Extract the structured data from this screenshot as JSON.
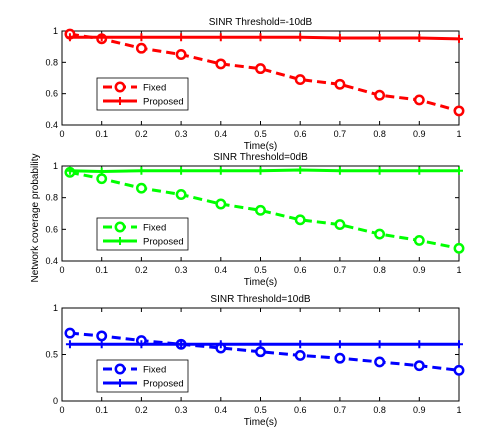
{
  "figure": {
    "shared_ylabel": "Network coverage probability"
  },
  "chart_data": [
    {
      "type": "line",
      "title": "SINR Threshold=-10dB",
      "xlabel": "Time(s)",
      "ylabel": "",
      "xlim": [
        0,
        1
      ],
      "ylim": [
        0.4,
        1
      ],
      "xticks": [
        "0",
        "0.1",
        "0.2",
        "0.3",
        "0.4",
        "0.5",
        "0.6",
        "0.7",
        "0.8",
        "0.9",
        "1"
      ],
      "yticks": [
        "0.4",
        "0.6",
        "0.8",
        "1"
      ],
      "grid": false,
      "legend_position": "bottom-left",
      "color": "#ff0000",
      "x": [
        0.02,
        0.1,
        0.2,
        0.3,
        0.4,
        0.5,
        0.6,
        0.7,
        0.8,
        0.9,
        1.0
      ],
      "series": [
        {
          "name": "Fixed",
          "style": "dashed-circle",
          "values": [
            0.98,
            0.95,
            0.89,
            0.85,
            0.79,
            0.76,
            0.69,
            0.66,
            0.59,
            0.56,
            0.49
          ]
        },
        {
          "name": "Proposed",
          "style": "solid-plus",
          "values": [
            0.96,
            0.96,
            0.96,
            0.96,
            0.96,
            0.96,
            0.96,
            0.955,
            0.955,
            0.955,
            0.95
          ]
        }
      ]
    },
    {
      "type": "line",
      "title": "SINR Threshold=0dB",
      "xlabel": "Time(s)",
      "ylabel": "",
      "xlim": [
        0,
        1
      ],
      "ylim": [
        0.4,
        1
      ],
      "xticks": [
        "0",
        "0.1",
        "0.2",
        "0.3",
        "0.4",
        "0.5",
        "0.6",
        "0.7",
        "0.8",
        "0.9",
        "1"
      ],
      "yticks": [
        "0.4",
        "0.6",
        "0.8",
        "1"
      ],
      "grid": false,
      "legend_position": "bottom-left",
      "color": "#00ff00",
      "x": [
        0.02,
        0.1,
        0.2,
        0.3,
        0.4,
        0.5,
        0.6,
        0.7,
        0.8,
        0.9,
        1.0
      ],
      "series": [
        {
          "name": "Fixed",
          "style": "dashed-circle",
          "values": [
            0.96,
            0.92,
            0.86,
            0.82,
            0.76,
            0.72,
            0.66,
            0.63,
            0.57,
            0.53,
            0.48
          ]
        },
        {
          "name": "Proposed",
          "style": "solid-plus",
          "values": [
            0.97,
            0.965,
            0.97,
            0.97,
            0.97,
            0.97,
            0.975,
            0.97,
            0.97,
            0.97,
            0.97
          ]
        }
      ]
    },
    {
      "type": "line",
      "title": "SINR Threshold=10dB",
      "xlabel": "Time(s)",
      "ylabel": "",
      "xlim": [
        0,
        1
      ],
      "ylim": [
        0,
        1
      ],
      "xticks": [
        "0",
        "0.1",
        "0.2",
        "0.3",
        "0.4",
        "0.5",
        "0.6",
        "0.7",
        "0.8",
        "0.9",
        "1"
      ],
      "yticks": [
        "0",
        "0.5",
        "1"
      ],
      "grid": false,
      "legend_position": "bottom-left",
      "color": "#0000ff",
      "x": [
        0.02,
        0.1,
        0.2,
        0.3,
        0.4,
        0.5,
        0.6,
        0.7,
        0.8,
        0.9,
        1.0
      ],
      "series": [
        {
          "name": "Fixed",
          "style": "dashed-circle",
          "values": [
            0.73,
            0.7,
            0.65,
            0.61,
            0.57,
            0.53,
            0.49,
            0.46,
            0.42,
            0.38,
            0.33
          ]
        },
        {
          "name": "Proposed",
          "style": "solid-plus",
          "values": [
            0.61,
            0.61,
            0.61,
            0.61,
            0.61,
            0.61,
            0.61,
            0.61,
            0.61,
            0.61,
            0.61
          ]
        }
      ]
    }
  ]
}
